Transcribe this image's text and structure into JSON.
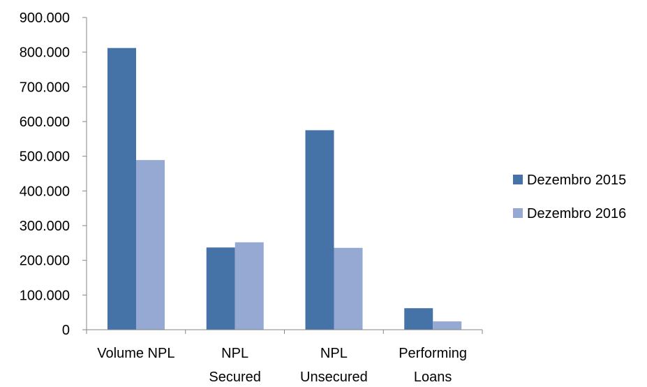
{
  "chart_data": {
    "type": "bar",
    "categories": [
      [
        "Volume NPL"
      ],
      [
        "NPL",
        "Secured"
      ],
      [
        "NPL",
        "Unsecured"
      ],
      [
        "Performing",
        "Loans"
      ]
    ],
    "series": [
      {
        "name": "Dezembro 2015",
        "color": "#4572A7",
        "values": [
          812000,
          237000,
          575000,
          62000
        ]
      },
      {
        "name": "Dezembro 2016",
        "color": "#95A9D2",
        "values": [
          489000,
          252000,
          236000,
          24000
        ]
      }
    ],
    "ylim": [
      0,
      900000
    ],
    "yticks": [
      {
        "value": 0,
        "label": "0"
      },
      {
        "value": 100000,
        "label": "100.000"
      },
      {
        "value": 200000,
        "label": "200.000"
      },
      {
        "value": 300000,
        "label": "300.000"
      },
      {
        "value": 400000,
        "label": "400.000"
      },
      {
        "value": 500000,
        "label": "500.000"
      },
      {
        "value": 600000,
        "label": "600.000"
      },
      {
        "value": 700000,
        "label": "700.000"
      },
      {
        "value": 800000,
        "label": "800.000"
      },
      {
        "value": 900000,
        "label": "900.000"
      }
    ],
    "grid": false,
    "legend_position": "right"
  }
}
